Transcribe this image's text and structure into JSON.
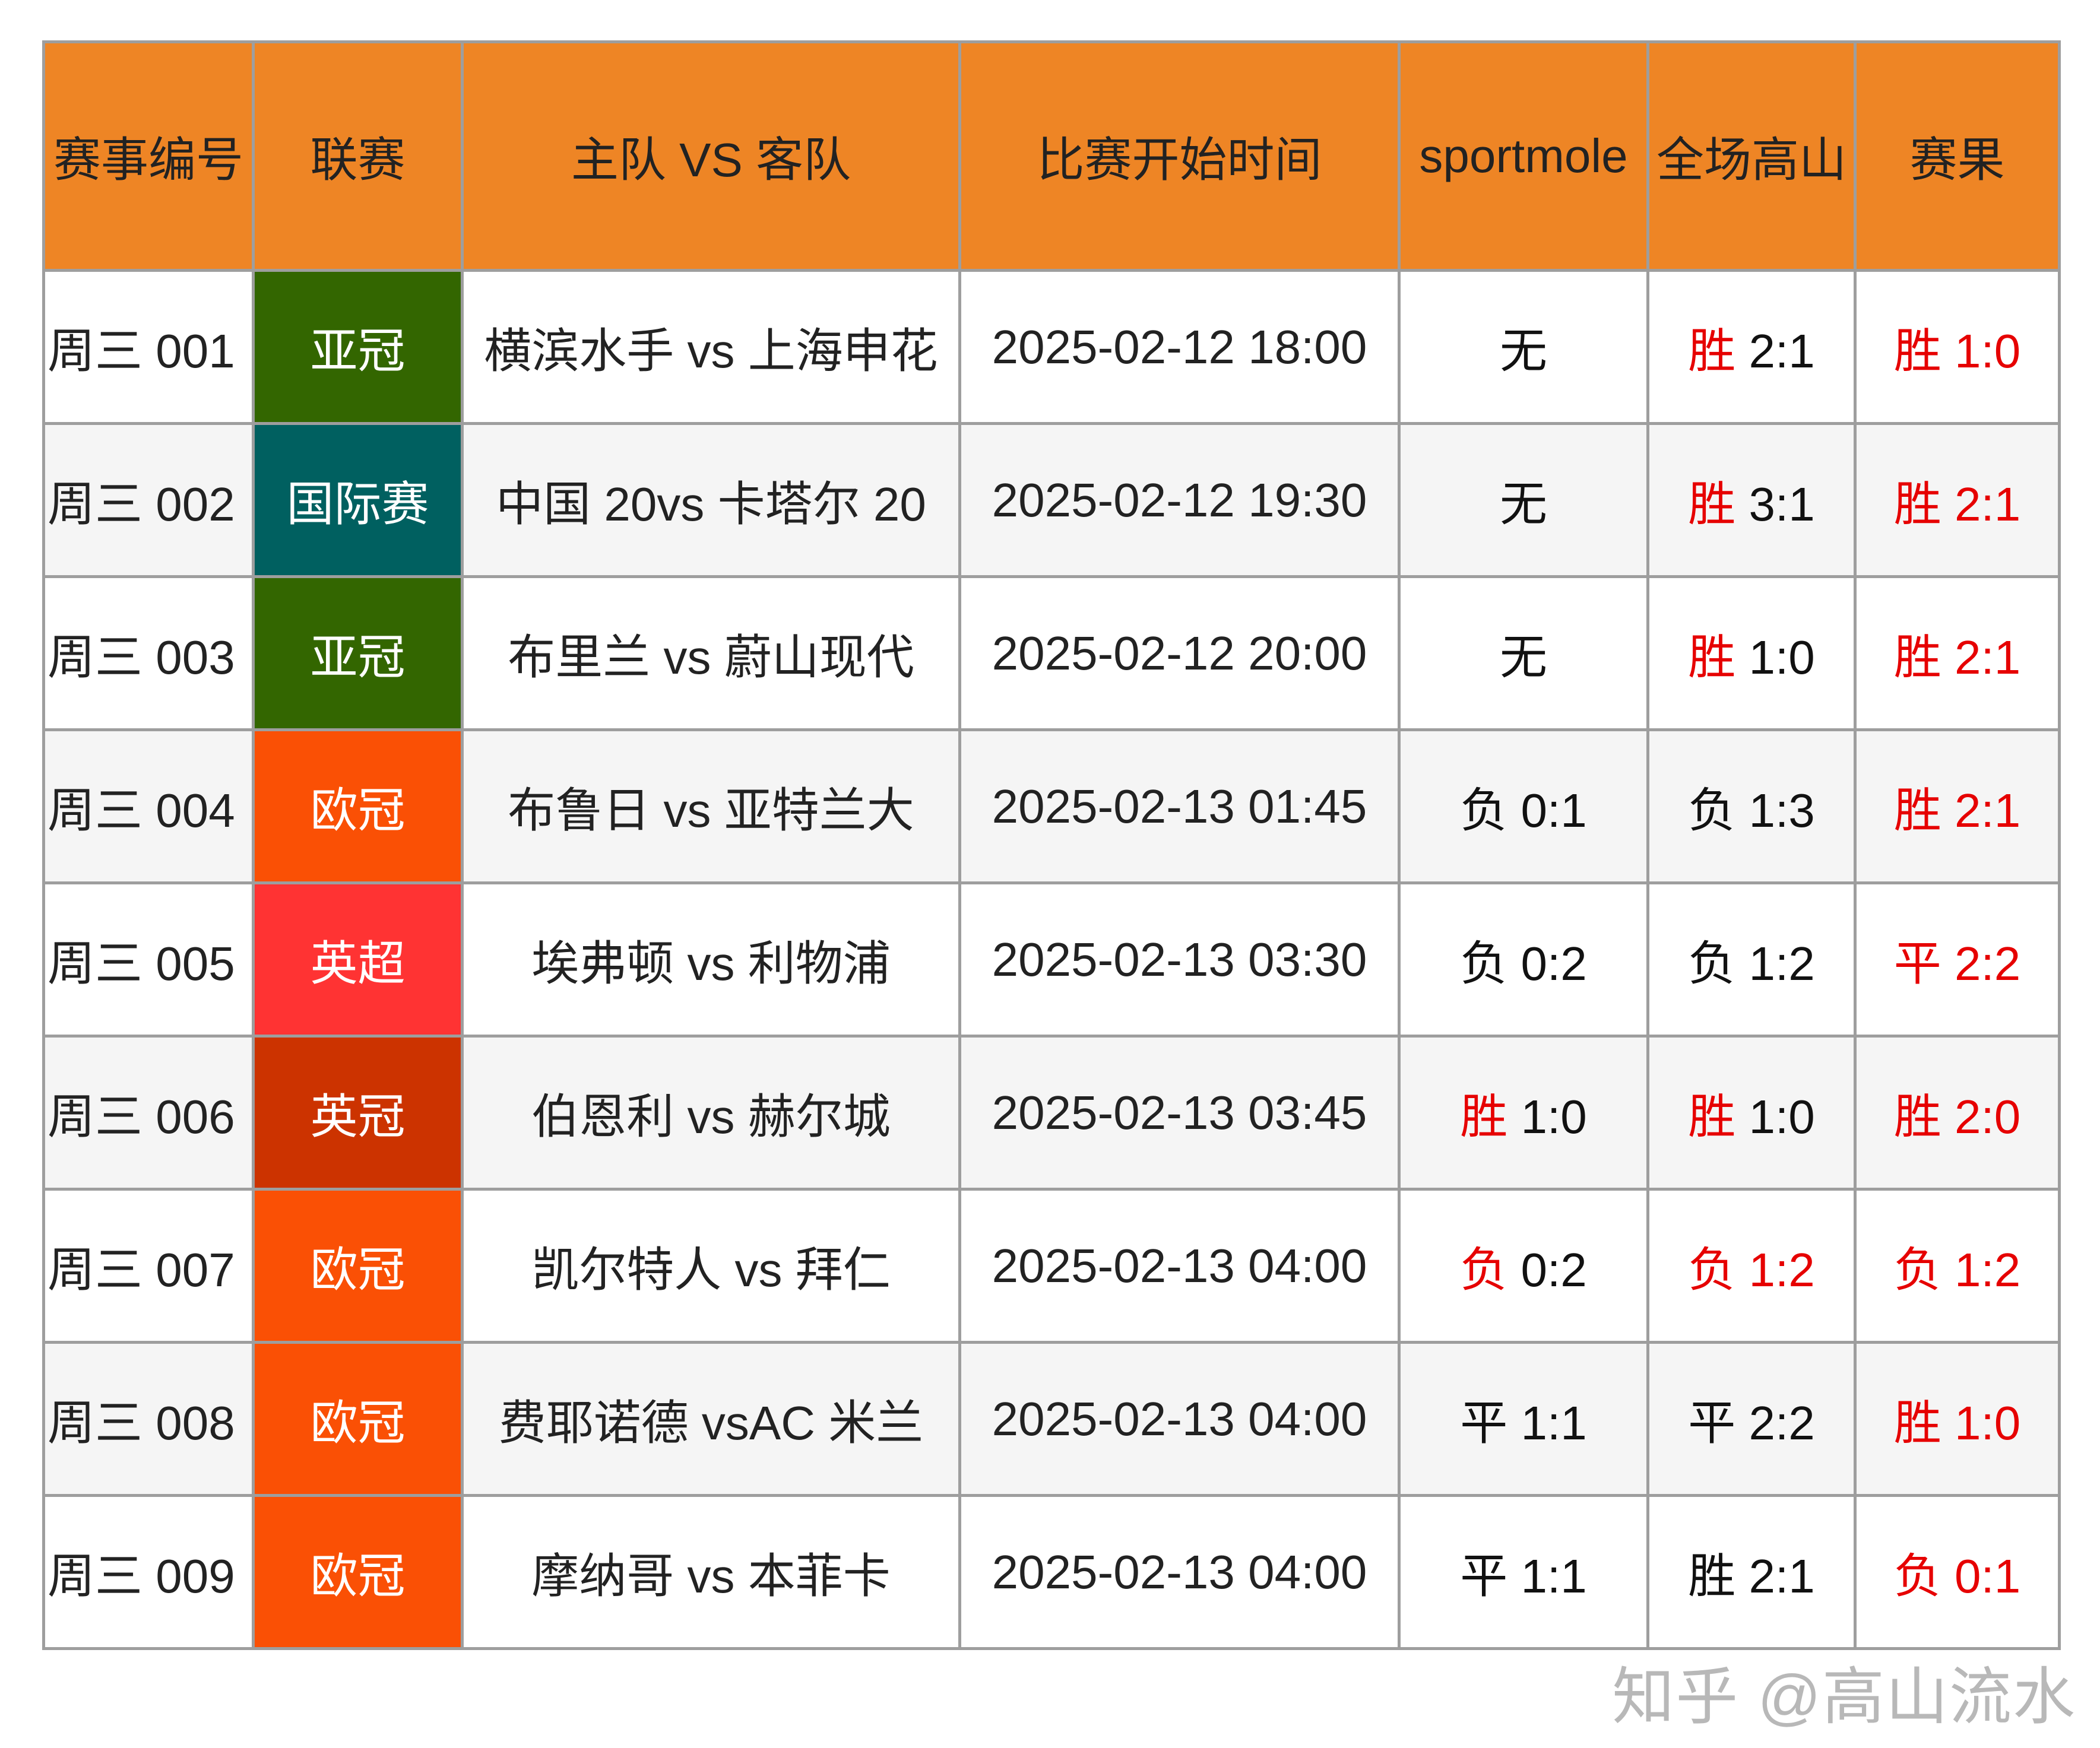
{
  "headers": [
    "赛事编号",
    "联赛",
    "主队 VS 客队",
    "比赛开始时间",
    "sportmole",
    "全场高山",
    "赛果"
  ],
  "colors": {
    "header_bg": "#ee8525",
    "win_red": "#e60000",
    "league": {
      "亚冠": "#336600",
      "国际赛": "#006060",
      "欧冠": "#fa5005",
      "英超": "#ff3333",
      "英冠": "#cc3300"
    }
  },
  "rows": [
    {
      "id": "周三 001",
      "league": "亚冠",
      "match": "横滨水手 vs 上海申花",
      "time": "2025-02-12 18:00",
      "sportmole": {
        "r": "无",
        "s": "",
        "rr": false,
        "sr": false
      },
      "gaoshan": {
        "r": "胜",
        "s": " 2:1",
        "rr": true,
        "sr": false
      },
      "result": {
        "r": "胜",
        "s": " 1:0",
        "rr": true,
        "sr": true
      }
    },
    {
      "id": "周三 002",
      "league": "国际赛",
      "match": "中国 20vs 卡塔尔 20",
      "time": "2025-02-12 19:30",
      "sportmole": {
        "r": "无",
        "s": "",
        "rr": false,
        "sr": false
      },
      "gaoshan": {
        "r": "胜",
        "s": " 3:1",
        "rr": true,
        "sr": false
      },
      "result": {
        "r": "胜",
        "s": " 2:1",
        "rr": true,
        "sr": true
      }
    },
    {
      "id": "周三 003",
      "league": "亚冠",
      "match": "布里兰 vs 蔚山现代",
      "time": "2025-02-12 20:00",
      "sportmole": {
        "r": "无",
        "s": "",
        "rr": false,
        "sr": false
      },
      "gaoshan": {
        "r": "胜",
        "s": " 1:0",
        "rr": true,
        "sr": false
      },
      "result": {
        "r": "胜",
        "s": " 2:1",
        "rr": true,
        "sr": true
      }
    },
    {
      "id": "周三 004",
      "league": "欧冠",
      "match": "布鲁日 vs 亚特兰大",
      "time": "2025-02-13 01:45",
      "sportmole": {
        "r": "负",
        "s": " 0:1",
        "rr": false,
        "sr": false
      },
      "gaoshan": {
        "r": "负",
        "s": " 1:3",
        "rr": false,
        "sr": false
      },
      "result": {
        "r": "胜",
        "s": " 2:1",
        "rr": true,
        "sr": true
      }
    },
    {
      "id": "周三 005",
      "league": "英超",
      "match": "埃弗顿 vs 利物浦",
      "time": "2025-02-13 03:30",
      "sportmole": {
        "r": "负",
        "s": " 0:2",
        "rr": false,
        "sr": false
      },
      "gaoshan": {
        "r": "负",
        "s": " 1:2",
        "rr": false,
        "sr": false
      },
      "result": {
        "r": "平",
        "s": " 2:2",
        "rr": true,
        "sr": true
      }
    },
    {
      "id": "周三 006",
      "league": "英冠",
      "match": "伯恩利 vs 赫尔城",
      "time": "2025-02-13 03:45",
      "sportmole": {
        "r": "胜",
        "s": " 1:0",
        "rr": true,
        "sr": false
      },
      "gaoshan": {
        "r": "胜",
        "s": " 1:0",
        "rr": true,
        "sr": false
      },
      "result": {
        "r": "胜",
        "s": " 2:0",
        "rr": true,
        "sr": true
      }
    },
    {
      "id": "周三 007",
      "league": "欧冠",
      "match": "凯尔特人 vs 拜仁",
      "time": "2025-02-13 04:00",
      "sportmole": {
        "r": "负",
        "s": " 0:2",
        "rr": true,
        "sr": false
      },
      "gaoshan": {
        "r": "负",
        "s": " 1:2",
        "rr": true,
        "sr": true
      },
      "result": {
        "r": "负",
        "s": " 1:2",
        "rr": true,
        "sr": true
      }
    },
    {
      "id": "周三 008",
      "league": "欧冠",
      "match": "费耶诺德 vsAC 米兰",
      "time": "2025-02-13 04:00",
      "sportmole": {
        "r": "平",
        "s": " 1:1",
        "rr": false,
        "sr": false
      },
      "gaoshan": {
        "r": "平",
        "s": " 2:2",
        "rr": false,
        "sr": false
      },
      "result": {
        "r": "胜",
        "s": " 1:0",
        "rr": true,
        "sr": true
      }
    },
    {
      "id": "周三 009",
      "league": "欧冠",
      "match": "摩纳哥 vs 本菲卡",
      "time": "2025-02-13 04:00",
      "sportmole": {
        "r": "平",
        "s": " 1:1",
        "rr": false,
        "sr": false
      },
      "gaoshan": {
        "r": "胜",
        "s": " 2:1",
        "rr": false,
        "sr": false
      },
      "result": {
        "r": "负",
        "s": " 0:1",
        "rr": true,
        "sr": true
      }
    }
  ],
  "watermark": "知乎 @高山流水"
}
